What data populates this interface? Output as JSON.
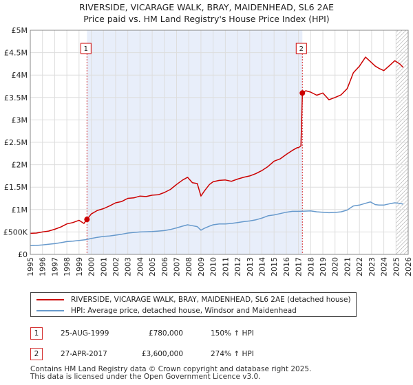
{
  "chart_data": {
    "type": "line",
    "title": "RIVERSIDE, VICARAGE WALK, BRAY, MAIDENHEAD, SL6 2AE",
    "subtitle": "Price paid vs. HM Land Registry's House Price Index (HPI)",
    "xlim": [
      1995,
      2026
    ],
    "ylim": [
      0,
      5000000
    ],
    "x_ticks": [
      1995,
      1996,
      1997,
      1998,
      1999,
      2000,
      2001,
      2002,
      2003,
      2004,
      2005,
      2006,
      2007,
      2008,
      2009,
      2010,
      2011,
      2012,
      2013,
      2014,
      2015,
      2016,
      2017,
      2018,
      2019,
      2020,
      2021,
      2022,
      2023,
      2024,
      2025,
      2026
    ],
    "y_ticks": [
      {
        "value": 0,
        "label": "£0"
      },
      {
        "value": 500000,
        "label": "£500K"
      },
      {
        "value": 1000000,
        "label": "£1M"
      },
      {
        "value": 1500000,
        "label": "£1.5M"
      },
      {
        "value": 2000000,
        "label": "£2M"
      },
      {
        "value": 2500000,
        "label": "£2.5M"
      },
      {
        "value": 3000000,
        "label": "£3M"
      },
      {
        "value": 3500000,
        "label": "£3.5M"
      },
      {
        "value": 4000000,
        "label": "£4M"
      },
      {
        "value": 4500000,
        "label": "£4.5M"
      },
      {
        "value": 5000000,
        "label": "£5M"
      }
    ],
    "grid": true,
    "shaded_period": [
      1999.65,
      2017.32
    ],
    "future_hatch_from": 2025.0,
    "colors": {
      "property": "#cc0000",
      "hpi": "#6699cc",
      "shade": "#e8eefa",
      "marker": "#cc0000"
    },
    "series": [
      {
        "name": "RIVERSIDE, VICARAGE WALK, BRAY, MAIDENHEAD, SL6 2AE (detached house)",
        "color": "#cc0000",
        "x": [
          1995.0,
          1995.5,
          1996.0,
          1996.5,
          1997.0,
          1997.5,
          1998.0,
          1998.5,
          1999.0,
          1999.4,
          1999.65,
          2000.0,
          2000.5,
          2001.0,
          2001.5,
          2002.0,
          2002.5,
          2003.0,
          2003.5,
          2004.0,
          2004.5,
          2005.0,
          2005.5,
          2006.0,
          2006.5,
          2007.0,
          2007.5,
          2007.9,
          2008.3,
          2008.7,
          2009.0,
          2009.3,
          2009.7,
          2010.0,
          2010.5,
          2011.0,
          2011.5,
          2012.0,
          2012.5,
          2013.0,
          2013.5,
          2014.0,
          2014.5,
          2015.0,
          2015.5,
          2016.0,
          2016.5,
          2016.9,
          2017.0,
          2017.2,
          2017.32,
          2017.6,
          2018.0,
          2018.5,
          2019.0,
          2019.5,
          2020.0,
          2020.5,
          2021.0,
          2021.5,
          2022.0,
          2022.5,
          2022.9,
          2023.3,
          2023.6,
          2024.0,
          2024.5,
          2024.9,
          2025.3,
          2025.6
        ],
        "values": [
          470000,
          475000,
          500000,
          520000,
          560000,
          610000,
          680000,
          710000,
          760000,
          690000,
          780000,
          900000,
          980000,
          1020000,
          1080000,
          1150000,
          1180000,
          1250000,
          1260000,
          1300000,
          1290000,
          1320000,
          1330000,
          1380000,
          1450000,
          1560000,
          1660000,
          1720000,
          1600000,
          1580000,
          1300000,
          1420000,
          1560000,
          1620000,
          1650000,
          1660000,
          1630000,
          1680000,
          1720000,
          1750000,
          1800000,
          1870000,
          1960000,
          2080000,
          2130000,
          2230000,
          2320000,
          2380000,
          2380000,
          2420000,
          3600000,
          3650000,
          3620000,
          3550000,
          3600000,
          3450000,
          3500000,
          3560000,
          3700000,
          4050000,
          4200000,
          4400000,
          4300000,
          4200000,
          4150000,
          4100000,
          4220000,
          4320000,
          4250000,
          4170000
        ]
      },
      {
        "name": "HPI: Average price, detached house, Windsor and Maidenhead",
        "color": "#6699cc",
        "x": [
          1995.0,
          1995.5,
          1996.0,
          1996.5,
          1997.0,
          1997.5,
          1998.0,
          1998.5,
          1999.0,
          1999.5,
          2000.0,
          2000.5,
          2001.0,
          2001.5,
          2002.0,
          2002.5,
          2003.0,
          2003.5,
          2004.0,
          2004.5,
          2005.0,
          2005.5,
          2006.0,
          2006.5,
          2007.0,
          2007.5,
          2007.9,
          2008.3,
          2008.7,
          2009.0,
          2009.3,
          2009.7,
          2010.0,
          2010.5,
          2011.0,
          2011.5,
          2012.0,
          2012.5,
          2013.0,
          2013.5,
          2014.0,
          2014.5,
          2015.0,
          2015.5,
          2016.0,
          2016.5,
          2017.0,
          2017.5,
          2018.0,
          2018.5,
          2019.0,
          2019.5,
          2020.0,
          2020.5,
          2021.0,
          2021.5,
          2022.0,
          2022.5,
          2022.9,
          2023.3,
          2023.6,
          2024.0,
          2024.5,
          2024.9,
          2025.3,
          2025.6
        ],
        "values": [
          195000,
          200000,
          210000,
          225000,
          240000,
          260000,
          285000,
          295000,
          310000,
          325000,
          355000,
          380000,
          400000,
          410000,
          430000,
          450000,
          475000,
          490000,
          500000,
          505000,
          510000,
          520000,
          530000,
          555000,
          590000,
          630000,
          660000,
          640000,
          620000,
          540000,
          585000,
          630000,
          660000,
          680000,
          680000,
          690000,
          710000,
          730000,
          745000,
          770000,
          810000,
          860000,
          880000,
          910000,
          940000,
          960000,
          960000,
          965000,
          970000,
          950000,
          940000,
          930000,
          935000,
          950000,
          990000,
          1080000,
          1100000,
          1140000,
          1170000,
          1110000,
          1100000,
          1100000,
          1130000,
          1150000,
          1140000,
          1120000
        ]
      }
    ],
    "sales": [
      {
        "id": "1",
        "x": 1999.65,
        "value": 780000,
        "date": "25-AUG-1999",
        "price": "£780,000",
        "hpi": "150% ↑ HPI"
      },
      {
        "id": "2",
        "x": 2017.32,
        "value": 3600000,
        "date": "27-APR-2017",
        "price": "£3,600,000",
        "hpi": "274% ↑ HPI"
      }
    ]
  },
  "legend": {
    "property": "RIVERSIDE, VICARAGE WALK, BRAY, MAIDENHEAD, SL6 2AE (detached house)",
    "hpi": "HPI: Average price, detached house, Windsor and Maidenhead"
  },
  "footer": {
    "line1": "Contains HM Land Registry data © Crown copyright and database right 2025.",
    "line2": "This data is licensed under the Open Government Licence v3.0."
  }
}
